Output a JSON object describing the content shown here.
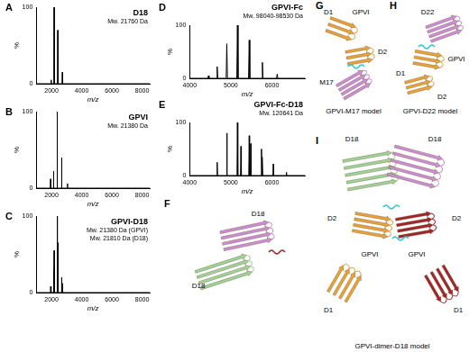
{
  "chart_data": [
    {
      "panel": "A",
      "type": "line",
      "title": "D18",
      "annotations": [
        "Mw. 21760 Da"
      ],
      "x_label": "m/z",
      "y_label": "%",
      "color": "#000000",
      "grid": false,
      "x": [
        1000,
        1964,
        1979,
        1994,
        2162,
        2177,
        2192,
        2404,
        2419,
        2434,
        2706,
        2721,
        2736,
        8500
      ],
      "values": [
        0,
        0,
        5,
        0,
        0,
        100,
        0,
        0,
        70,
        0,
        0,
        15,
        0,
        0
      ],
      "xlim": [
        1000,
        8500
      ],
      "xticks": [
        2000,
        4000,
        6000,
        8000
      ],
      "ylim": [
        0,
        100
      ],
      "yticks": [
        0,
        100
      ]
    },
    {
      "panel": "B",
      "type": "line",
      "title": "GPVI",
      "annotations": [
        "Mw. 21380 Da"
      ],
      "x_label": "m/z",
      "y_label": "%",
      "color": "#000000",
      "grid": false,
      "x": [
        1000,
        1930,
        1945,
        1960,
        2124,
        2139,
        2154,
        2362,
        2377,
        2392,
        2659,
        2674,
        2689,
        3041,
        3056,
        3071,
        8500
      ],
      "values": [
        0,
        0,
        12,
        0,
        0,
        22,
        0,
        0,
        100,
        0,
        0,
        40,
        0,
        0,
        6,
        0,
        0
      ],
      "xlim": [
        1000,
        8500
      ],
      "xticks": [
        2000,
        4000,
        6000,
        8000
      ],
      "ylim": [
        0,
        100
      ],
      "yticks": [
        0,
        100
      ]
    },
    {
      "panel": "C",
      "type": "line",
      "title": "GPVI-D18",
      "annotations": [
        "Mw. 21380 Da (GPVI)",
        "Mw. 21810 Da (D18)"
      ],
      "x_label": "m/z",
      "y_label": "%",
      "color": "#000000",
      "grid": false,
      "x": [
        1000,
        1935,
        1945,
        1955,
        1975,
        1985,
        1995,
        2129,
        2139,
        2149,
        2171,
        2181,
        2191,
        2367,
        2377,
        2387,
        2413,
        2423,
        2433,
        2664,
        2674,
        2684,
        2716,
        2726,
        2736,
        8500
      ],
      "values": [
        0,
        0,
        8,
        0,
        0,
        6,
        0,
        0,
        30,
        0,
        0,
        55,
        0,
        0,
        100,
        0,
        0,
        65,
        0,
        0,
        20,
        0,
        0,
        12,
        0,
        0
      ],
      "xlim": [
        1000,
        8500
      ],
      "xticks": [
        2000,
        4000,
        6000,
        8000
      ],
      "ylim": [
        0,
        100
      ],
      "yticks": [
        0,
        100
      ]
    },
    {
      "panel": "D",
      "type": "line",
      "title": "GPVI-Fc",
      "annotations": [
        "Mw. 98040-98530 Da"
      ],
      "x_label": "m/z",
      "y_label": "%",
      "color": "#000000",
      "grid": false,
      "x": [
        4000,
        4442,
        4457,
        4472,
        4654,
        4669,
        4684,
        4888,
        4903,
        4918,
        5146,
        5161,
        5176,
        5432,
        5447,
        5462,
        5753,
        5768,
        5783,
        6113,
        6128,
        6143,
        6800
      ],
      "values": [
        0,
        0,
        5,
        0,
        0,
        22,
        0,
        0,
        65,
        0,
        0,
        100,
        0,
        0,
        72,
        0,
        0,
        30,
        0,
        0,
        8,
        0,
        0
      ],
      "xlim": [
        4000,
        6800
      ],
      "xticks": [
        4000,
        5000,
        6000
      ],
      "ylim": [
        0,
        100
      ],
      "yticks": [
        0,
        100
      ]
    },
    {
      "panel": "E",
      "type": "line",
      "title": "GPVI-Fc-D18",
      "annotations": [
        "Mw. 120641 Da"
      ],
      "x_label": "m/z",
      "y_label": "%",
      "color": "#000000",
      "grid": false,
      "x": [
        4000,
        4659,
        4669,
        4679,
        4893,
        4903,
        4913,
        5151,
        5161,
        5171,
        5236,
        5246,
        5256,
        5437,
        5447,
        5457,
        5475,
        5485,
        5495,
        5736,
        5746,
        5756,
        5758,
        5768,
        5778,
        6023,
        6033,
        6043,
        6340,
        6350,
        6360,
        6800
      ],
      "values": [
        0,
        0,
        25,
        0,
        0,
        80,
        0,
        0,
        100,
        0,
        0,
        55,
        0,
        0,
        75,
        0,
        0,
        60,
        0,
        0,
        50,
        0,
        0,
        35,
        0,
        0,
        22,
        0,
        0,
        6,
        0,
        0
      ],
      "xlim": [
        4000,
        6800
      ],
      "xticks": [
        4000,
        5000,
        6000
      ],
      "ylim": [
        0,
        100
      ],
      "yticks": [
        0,
        100
      ]
    }
  ],
  "models": [
    {
      "panel": "F",
      "labels": [
        "D18",
        "D18"
      ]
    },
    {
      "panel": "G",
      "labels": [
        "D1",
        "GPVI",
        "D2",
        "M17"
      ],
      "caption": "GPVI-M17 model"
    },
    {
      "panel": "H",
      "labels": [
        "D22",
        "GPVI",
        "D1",
        "D2"
      ],
      "caption": "GPVI-D22 model"
    },
    {
      "panel": "I",
      "labels": [
        "D18",
        "D18",
        "D2",
        "D2",
        "GPVI",
        "GPVI",
        "D1",
        "D1"
      ],
      "caption": "GPVI-dimer-D18 model"
    }
  ]
}
